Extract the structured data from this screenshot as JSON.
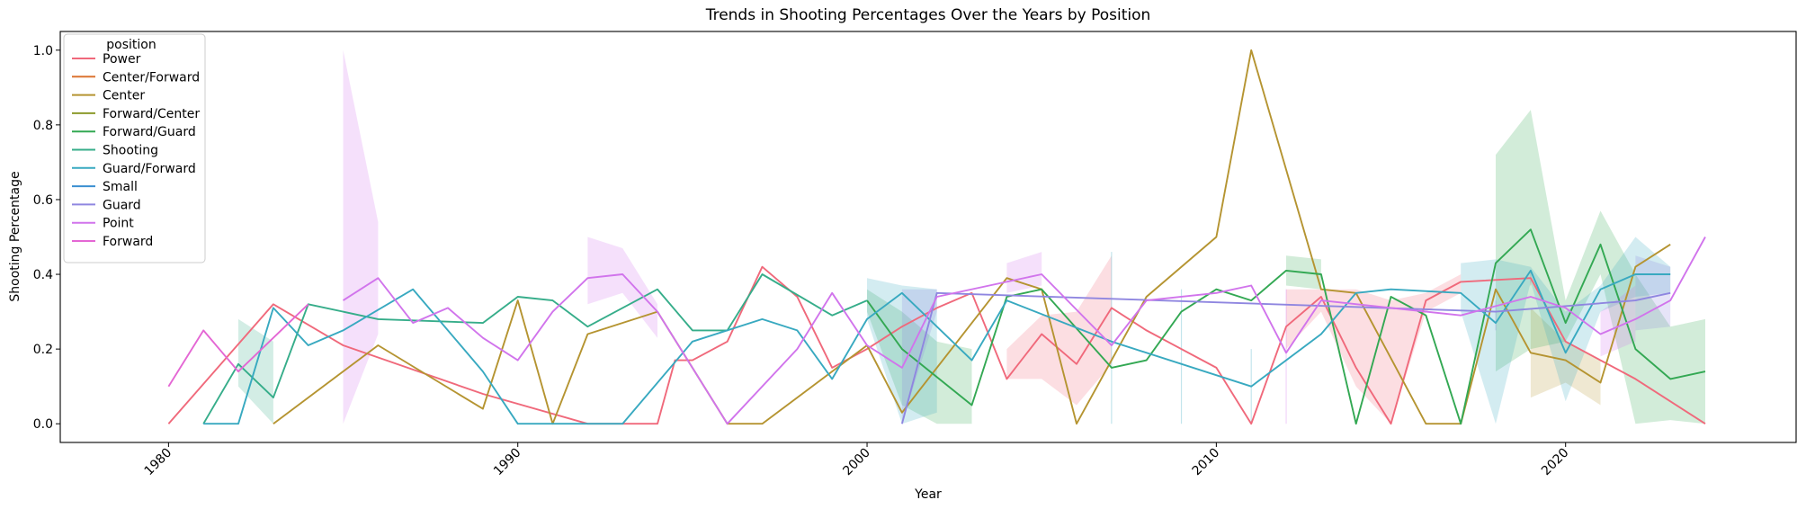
{
  "chart_data": {
    "type": "line",
    "title": "Trends in Shooting Percentages Over the Years by Position",
    "xlabel": "Year",
    "ylabel": "Shooting Percentage",
    "xlim": [
      1976.9,
      2026.6
    ],
    "ylim": [
      -0.05,
      1.05
    ],
    "x_ticks": [
      1980,
      1990,
      2000,
      2010,
      2020
    ],
    "y_ticks": [
      0.0,
      0.2,
      0.4,
      0.6,
      0.8,
      1.0
    ],
    "y_tick_labels": [
      "0.0",
      "0.2",
      "0.4",
      "0.6",
      "0.8",
      "1.0"
    ],
    "grid": false,
    "legend_title": "position",
    "legend_placement": "top-left",
    "series": [
      {
        "name": "Power",
        "color": "#f0697b",
        "points": [
          [
            1980,
            0.0
          ],
          [
            1983,
            0.32
          ],
          [
            1985,
            0.21
          ],
          [
            1989,
            0.08
          ],
          [
            1992,
            0.0
          ],
          [
            1994,
            0.0
          ],
          [
            1994.5,
            0.17
          ],
          [
            1995,
            0.17
          ],
          [
            1996,
            0.22
          ],
          [
            1997,
            0.42
          ],
          [
            1998,
            0.34
          ],
          [
            1999,
            0.15
          ],
          [
            2000,
            0.2
          ],
          [
            2001,
            0.26
          ],
          [
            2002,
            0.31
          ],
          [
            2003,
            0.35
          ],
          [
            2004,
            0.12
          ],
          [
            2005,
            0.24
          ],
          [
            2006,
            0.16
          ],
          [
            2007,
            0.31
          ],
          [
            2008,
            0.25
          ],
          [
            2010,
            0.15
          ],
          [
            2011,
            0.0
          ],
          [
            2012,
            0.26
          ],
          [
            2013,
            0.34
          ],
          [
            2014,
            0.15
          ],
          [
            2015,
            0.0
          ],
          [
            2016,
            0.33
          ],
          [
            2017,
            0.38
          ],
          [
            2019,
            0.39
          ],
          [
            2020,
            0.22
          ],
          [
            2022,
            0.12
          ],
          [
            2024,
            0.0
          ]
        ],
        "band": [
          [
            2004,
            0.2,
            0.12
          ],
          [
            2005,
            0.29,
            0.12
          ],
          [
            2006,
            0.3,
            0.05
          ],
          [
            2007,
            0.45,
            0.16
          ],
          [
            2012,
            0.36,
            0.2
          ],
          [
            2013,
            0.36,
            0.3
          ],
          [
            2014,
            0.36,
            0.1
          ],
          [
            2015,
            0.33,
            0.0
          ],
          [
            2016,
            0.35,
            0.3
          ],
          [
            2017,
            0.4,
            0.35
          ],
          [
            2019,
            0.41,
            0.37
          ]
        ]
      },
      {
        "name": "Center/Forward",
        "color": "#dc7330",
        "points": []
      },
      {
        "name": "Center",
        "color": "#b59431",
        "points": [
          [
            1983,
            0.0
          ],
          [
            1986,
            0.21
          ],
          [
            1989,
            0.04
          ],
          [
            1990,
            0.33
          ],
          [
            1991,
            0.0
          ],
          [
            1992,
            0.24
          ],
          [
            1994,
            0.3
          ],
          [
            1996,
            0.0
          ],
          [
            1997,
            0.0
          ],
          [
            2000,
            0.21
          ],
          [
            2001,
            0.03
          ],
          [
            2004,
            0.39
          ],
          [
            2005,
            0.36
          ],
          [
            2006,
            0.0
          ],
          [
            2008,
            0.34
          ],
          [
            2010,
            0.5
          ],
          [
            2011,
            1.0
          ],
          [
            2013,
            0.36
          ],
          [
            2014,
            0.35
          ],
          [
            2016,
            0.0
          ],
          [
            2017,
            0.0
          ],
          [
            2018,
            0.36
          ],
          [
            2019,
            0.19
          ],
          [
            2020,
            0.17
          ],
          [
            2021,
            0.11
          ],
          [
            2022,
            0.42
          ],
          [
            2023,
            0.48
          ]
        ],
        "band": [
          [
            2019,
            0.31,
            0.07
          ],
          [
            2020,
            0.22,
            0.11
          ],
          [
            2021,
            0.17,
            0.05
          ]
        ]
      },
      {
        "name": "Forward/Center",
        "color": "#8c9a2b",
        "points": []
      },
      {
        "name": "Forward/Guard",
        "color": "#33a853",
        "points": [
          [
            2000,
            0.33
          ],
          [
            2001,
            0.2
          ],
          [
            2003,
            0.05
          ],
          [
            2004,
            0.34
          ],
          [
            2005,
            0.36
          ],
          [
            2007,
            0.15
          ],
          [
            2008,
            0.17
          ],
          [
            2009,
            0.3
          ],
          [
            2010,
            0.36
          ],
          [
            2011,
            0.33
          ],
          [
            2012,
            0.41
          ],
          [
            2013,
            0.4
          ],
          [
            2014,
            0.0
          ],
          [
            2015,
            0.34
          ],
          [
            2016,
            0.29
          ],
          [
            2017,
            0.0
          ],
          [
            2018,
            0.43
          ],
          [
            2019,
            0.52
          ],
          [
            2020,
            0.27
          ],
          [
            2021,
            0.48
          ],
          [
            2022,
            0.2
          ],
          [
            2023,
            0.12
          ],
          [
            2024,
            0.14
          ]
        ],
        "band": [
          [
            2000,
            0.36,
            0.3
          ],
          [
            2001,
            0.3,
            0.05
          ],
          [
            2002,
            0.22,
            0.0
          ],
          [
            2003,
            0.2,
            0.0
          ],
          [
            2012,
            0.45,
            0.37
          ],
          [
            2013,
            0.44,
            0.36
          ],
          [
            2018,
            0.72,
            0.14
          ],
          [
            2019,
            0.84,
            0.2
          ],
          [
            2020,
            0.33,
            0.22
          ],
          [
            2021,
            0.57,
            0.4
          ],
          [
            2022,
            0.4,
            0.0
          ],
          [
            2023,
            0.26,
            0.01
          ],
          [
            2024,
            0.28,
            0.0
          ]
        ]
      },
      {
        "name": "Shooting",
        "color": "#36ad8a",
        "points": [
          [
            1981,
            0.0
          ],
          [
            1982,
            0.16
          ],
          [
            1983,
            0.07
          ],
          [
            1984,
            0.32
          ],
          [
            1986,
            0.28
          ],
          [
            1989,
            0.27
          ],
          [
            1990,
            0.34
          ],
          [
            1991,
            0.33
          ],
          [
            1992,
            0.26
          ],
          [
            1994,
            0.36
          ],
          [
            1995,
            0.25
          ],
          [
            1996,
            0.25
          ],
          [
            1997,
            0.4
          ],
          [
            1999,
            0.29
          ],
          [
            2000,
            0.33
          ]
        ],
        "band": [
          [
            1982,
            0.28,
            0.1
          ],
          [
            1983,
            0.22,
            0.0
          ]
        ]
      },
      {
        "name": "Guard/Forward",
        "color": "#38a9c0",
        "points": [
          [
            1981,
            0.0
          ],
          [
            1982,
            0.0
          ],
          [
            1983,
            0.31
          ],
          [
            1984,
            0.21
          ],
          [
            1985,
            0.25
          ],
          [
            1987,
            0.36
          ],
          [
            1989,
            0.14
          ],
          [
            1990,
            0.0
          ],
          [
            1993,
            0.0
          ],
          [
            1995,
            0.22
          ],
          [
            1997,
            0.28
          ],
          [
            1998,
            0.25
          ],
          [
            1999,
            0.12
          ],
          [
            2000,
            0.28
          ],
          [
            2001,
            0.35
          ],
          [
            2003,
            0.17
          ],
          [
            2004,
            0.33
          ],
          [
            2007,
            0.22
          ],
          [
            2011,
            0.1
          ],
          [
            2013,
            0.24
          ],
          [
            2014,
            0.35
          ],
          [
            2015,
            0.36
          ],
          [
            2017,
            0.35
          ],
          [
            2018,
            0.27
          ],
          [
            2019,
            0.41
          ],
          [
            2020,
            0.19
          ],
          [
            2021,
            0.36
          ],
          [
            2022,
            0.4
          ],
          [
            2023,
            0.4
          ]
        ],
        "band": [
          [
            2000,
            0.39,
            0.28
          ],
          [
            2001,
            0.37,
            0.0
          ],
          [
            2002,
            0.36,
            0.03
          ],
          [
            2007,
            0.46,
            0.0
          ],
          [
            2009,
            0.36,
            0.0
          ],
          [
            2011,
            0.2,
            0.0
          ],
          [
            2017,
            0.43,
            0.3
          ],
          [
            2018,
            0.44,
            0.0
          ],
          [
            2019,
            0.42,
            0.38
          ],
          [
            2020,
            0.3,
            0.06
          ],
          [
            2021,
            0.37,
            0.3
          ],
          [
            2022,
            0.5,
            0.34
          ],
          [
            2023,
            0.42,
            0.35
          ]
        ]
      },
      {
        "name": "Small",
        "color": "#3a8fd1",
        "points": []
      },
      {
        "name": "Guard",
        "color": "#8f86e0",
        "points": [
          [
            2001,
            0.0
          ],
          [
            2002,
            0.35
          ],
          [
            2018,
            0.3
          ],
          [
            2022,
            0.33
          ],
          [
            2023,
            0.35
          ]
        ],
        "band": [
          [
            2001,
            0.36,
            0.0
          ],
          [
            2002,
            0.36,
            0.3
          ],
          [
            2018,
            0.33,
            0.25
          ],
          [
            2022,
            0.45,
            0.25
          ],
          [
            2023,
            0.42,
            0.26
          ]
        ]
      },
      {
        "name": "Point",
        "color": "#d174ec",
        "points": [
          [
            1985,
            0.33
          ],
          [
            1986,
            0.39
          ],
          [
            1987,
            0.27
          ],
          [
            1988,
            0.31
          ],
          [
            1989,
            0.23
          ],
          [
            1990,
            0.17
          ],
          [
            1991,
            0.3
          ],
          [
            1992,
            0.39
          ],
          [
            1993,
            0.4
          ],
          [
            1994,
            0.3
          ],
          [
            1996,
            0.0
          ],
          [
            1998,
            0.2
          ],
          [
            1999,
            0.35
          ],
          [
            2000,
            0.21
          ],
          [
            2001,
            0.15
          ],
          [
            2002,
            0.34
          ],
          [
            2005,
            0.4
          ],
          [
            2007,
            0.21
          ],
          [
            2008,
            0.33
          ],
          [
            2010,
            0.35
          ],
          [
            2011,
            0.37
          ],
          [
            2012,
            0.19
          ],
          [
            2013,
            0.33
          ],
          [
            2017,
            0.29
          ],
          [
            2019,
            0.34
          ],
          [
            2020,
            0.31
          ],
          [
            2021,
            0.24
          ],
          [
            2022,
            0.28
          ],
          [
            2023,
            0.33
          ],
          [
            2024,
            0.5
          ]
        ],
        "band": [
          [
            1985,
            1.0,
            0.0
          ],
          [
            1986,
            0.54,
            0.24
          ],
          [
            1992,
            0.5,
            0.32
          ],
          [
            1993,
            0.47,
            0.35
          ],
          [
            1994,
            0.32,
            0.23
          ],
          [
            2004,
            0.43,
            0.35
          ],
          [
            2005,
            0.46,
            0.37
          ],
          [
            2012,
            0.36,
            0.0
          ],
          [
            2021,
            0.3,
            0.18
          ],
          [
            2022,
            0.37,
            0.22
          ]
        ]
      },
      {
        "name": "Forward",
        "color": "#e467d4",
        "points": [
          [
            1980,
            0.1
          ],
          [
            1981,
            0.25
          ],
          [
            1982,
            0.14
          ],
          [
            1984,
            0.32
          ]
        ]
      }
    ]
  }
}
